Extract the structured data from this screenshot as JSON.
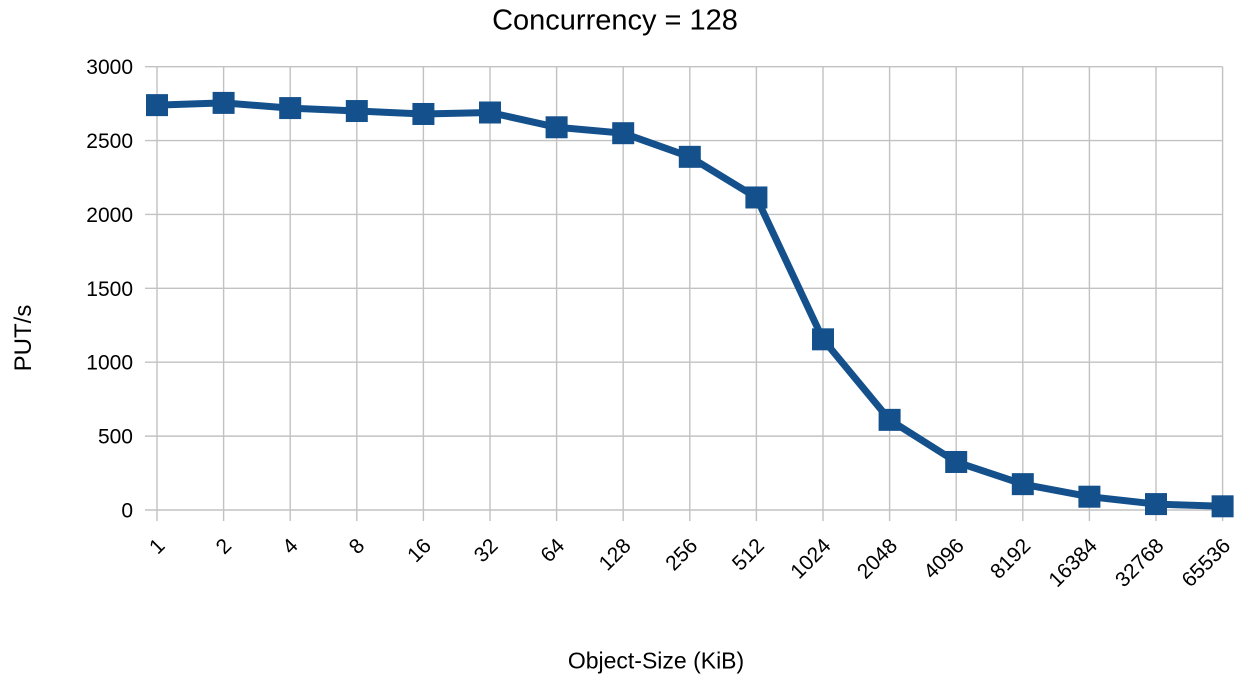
{
  "chart_data": {
    "type": "line",
    "title": "Concurrency = 128",
    "xlabel": "Object-Size (KiB)",
    "ylabel": "PUT/s",
    "categories": [
      "1",
      "2",
      "4",
      "8",
      "16",
      "32",
      "64",
      "128",
      "256",
      "512",
      "1024",
      "2048",
      "4096",
      "8192",
      "16384",
      "32768",
      "65536"
    ],
    "series": [
      {
        "name": "PUT/s",
        "values": [
          2740,
          2755,
          2720,
          2700,
          2680,
          2690,
          2590,
          2550,
          2390,
          2115,
          1155,
          610,
          325,
          175,
          90,
          40,
          25
        ]
      }
    ],
    "ylim": [
      0,
      3000
    ],
    "yticks": [
      0,
      500,
      1000,
      1500,
      2000,
      2500,
      3000
    ],
    "grid": true,
    "legend": "none",
    "marker": "square",
    "series_color": "#14518C",
    "gridline_color": "#C2C2C2",
    "text_color": "#000000"
  }
}
